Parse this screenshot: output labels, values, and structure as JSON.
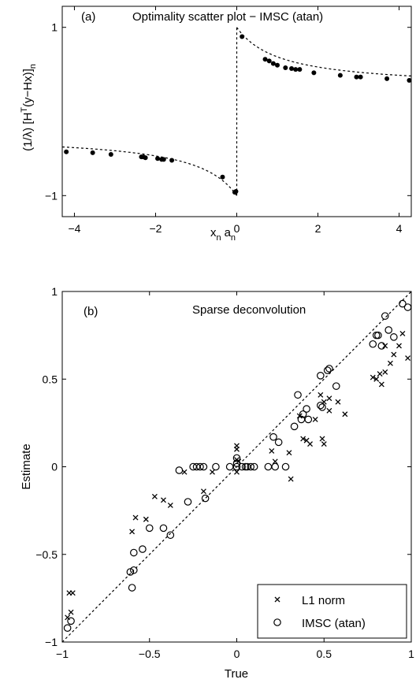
{
  "chart_data": [
    {
      "type": "scatter",
      "panel_letter": "(a)",
      "title": "Optimality scatter plot − IMSC (atan)",
      "xlabel": "x",
      "xlabel_sub": "n",
      "xlabel_b": "a",
      "xlabel_b_sub": "n",
      "ylabel": "(1/λ) [H",
      "ylabel_sup": "T",
      "ylabel_tail": "(y−Hx)]",
      "ylabel_sub": "n",
      "xlim": [
        -4.3,
        4.3
      ],
      "ylim": [
        -1.25,
        1.25
      ],
      "xticks": [
        -4,
        -2,
        0,
        2,
        4
      ],
      "xtick_labels": [
        "−4",
        "−2",
        "0",
        "2",
        "4"
      ],
      "yticks": [
        -1,
        1
      ],
      "ytick_labels": [
        "−1",
        "1"
      ],
      "curve": "dashed threshold function -2/(pi*(1+|x|)) * sign-complement, jumps from -1 to 1 at x=0",
      "points": [
        {
          "x": -4.2,
          "y": -0.48
        },
        {
          "x": -3.55,
          "y": -0.49
        },
        {
          "x": -3.1,
          "y": -0.51
        },
        {
          "x": -2.35,
          "y": -0.54
        },
        {
          "x": -2.3,
          "y": -0.54
        },
        {
          "x": -2.25,
          "y": -0.55
        },
        {
          "x": -1.95,
          "y": -0.56
        },
        {
          "x": -1.85,
          "y": -0.57
        },
        {
          "x": -1.8,
          "y": -0.57
        },
        {
          "x": -1.6,
          "y": -0.58
        },
        {
          "x": -0.35,
          "y": -0.78
        },
        {
          "x": -0.05,
          "y": -0.96
        },
        {
          "x": -0.02,
          "y": -0.95
        },
        {
          "x": 0.13,
          "y": 0.89
        },
        {
          "x": 0.7,
          "y": 0.62
        },
        {
          "x": 0.8,
          "y": 0.6
        },
        {
          "x": 0.9,
          "y": 0.57
        },
        {
          "x": 1.0,
          "y": 0.55
        },
        {
          "x": 1.2,
          "y": 0.52
        },
        {
          "x": 1.35,
          "y": 0.51
        },
        {
          "x": 1.45,
          "y": 0.5
        },
        {
          "x": 1.55,
          "y": 0.5
        },
        {
          "x": 1.9,
          "y": 0.46
        },
        {
          "x": 2.55,
          "y": 0.43
        },
        {
          "x": 2.95,
          "y": 0.41
        },
        {
          "x": 3.05,
          "y": 0.41
        },
        {
          "x": 3.7,
          "y": 0.39
        },
        {
          "x": 4.25,
          "y": 0.37
        }
      ]
    },
    {
      "type": "scatter",
      "panel_letter": "(b)",
      "title": "Sparse deconvolution",
      "xlabel": "True",
      "ylabel": "Estimate",
      "xlim": [
        -1,
        1
      ],
      "ylim": [
        -1,
        1
      ],
      "xticks": [
        -1,
        -0.5,
        0,
        0.5,
        1
      ],
      "xtick_labels": [
        "−1",
        "−0.5",
        "0",
        "0.5",
        "1"
      ],
      "yticks": [
        -1,
        -0.5,
        0,
        0.5,
        1
      ],
      "ytick_labels": [
        "−1",
        "−0.5",
        "0",
        "0.5",
        "1"
      ],
      "reference_line": "y = x (dashed)",
      "legend_location": "bottom-right",
      "series": [
        {
          "name": "L1 norm",
          "marker": "x",
          "points": [
            {
              "x": -0.97,
              "y": -0.86
            },
            {
              "x": -0.96,
              "y": -0.72
            },
            {
              "x": -0.94,
              "y": -0.72
            },
            {
              "x": -0.95,
              "y": -0.83
            },
            {
              "x": -0.6,
              "y": -0.37
            },
            {
              "x": -0.58,
              "y": -0.29
            },
            {
              "x": -0.52,
              "y": -0.3
            },
            {
              "x": -0.47,
              "y": -0.17
            },
            {
              "x": -0.42,
              "y": -0.19
            },
            {
              "x": -0.38,
              "y": -0.22
            },
            {
              "x": -0.19,
              "y": -0.14
            },
            {
              "x": -0.14,
              "y": -0.03
            },
            {
              "x": -0.3,
              "y": -0.03
            },
            {
              "x": 0.0,
              "y": 0.12
            },
            {
              "x": 0.0,
              "y": 0.1
            },
            {
              "x": 0.0,
              "y": 0.04
            },
            {
              "x": 0.01,
              "y": 0.03
            },
            {
              "x": 0.0,
              "y": -0.03
            },
            {
              "x": 0.2,
              "y": 0.09
            },
            {
              "x": 0.22,
              "y": 0.03
            },
            {
              "x": 0.3,
              "y": 0.08
            },
            {
              "x": 0.31,
              "y": -0.07
            },
            {
              "x": 0.36,
              "y": 0.29
            },
            {
              "x": 0.38,
              "y": 0.16
            },
            {
              "x": 0.4,
              "y": 0.15
            },
            {
              "x": 0.42,
              "y": 0.13
            },
            {
              "x": 0.45,
              "y": 0.27
            },
            {
              "x": 0.48,
              "y": 0.41
            },
            {
              "x": 0.49,
              "y": 0.16
            },
            {
              "x": 0.5,
              "y": 0.13
            },
            {
              "x": 0.5,
              "y": 0.37
            },
            {
              "x": 0.53,
              "y": 0.39
            },
            {
              "x": 0.53,
              "y": 0.32
            },
            {
              "x": 0.58,
              "y": 0.37
            },
            {
              "x": 0.62,
              "y": 0.3
            },
            {
              "x": 0.78,
              "y": 0.51
            },
            {
              "x": 0.8,
              "y": 0.5
            },
            {
              "x": 0.82,
              "y": 0.53
            },
            {
              "x": 0.83,
              "y": 0.47
            },
            {
              "x": 0.85,
              "y": 0.54
            },
            {
              "x": 0.88,
              "y": 0.59
            },
            {
              "x": 0.9,
              "y": 0.64
            },
            {
              "x": 0.93,
              "y": 0.69
            },
            {
              "x": 0.95,
              "y": 0.76
            },
            {
              "x": 0.98,
              "y": 0.62
            },
            {
              "x": 0.85,
              "y": 0.69
            }
          ]
        },
        {
          "name": "IMSC (atan)",
          "marker": "o",
          "points": [
            {
              "x": -0.97,
              "y": -0.92
            },
            {
              "x": -0.95,
              "y": -0.88
            },
            {
              "x": -0.61,
              "y": -0.6
            },
            {
              "x": -0.6,
              "y": -0.69
            },
            {
              "x": -0.59,
              "y": -0.59
            },
            {
              "x": -0.59,
              "y": -0.49
            },
            {
              "x": -0.54,
              "y": -0.47
            },
            {
              "x": -0.5,
              "y": -0.35
            },
            {
              "x": -0.42,
              "y": -0.35
            },
            {
              "x": -0.38,
              "y": -0.39
            },
            {
              "x": -0.33,
              "y": -0.02
            },
            {
              "x": -0.28,
              "y": -0.2
            },
            {
              "x": -0.18,
              "y": -0.18
            },
            {
              "x": -0.25,
              "y": 0.0
            },
            {
              "x": -0.23,
              "y": 0.0
            },
            {
              "x": -0.21,
              "y": 0.0
            },
            {
              "x": -0.19,
              "y": 0.0
            },
            {
              "x": -0.12,
              "y": 0.0
            },
            {
              "x": -0.04,
              "y": 0.0
            },
            {
              "x": 0.0,
              "y": 0.0
            },
            {
              "x": 0.0,
              "y": 0.05
            },
            {
              "x": 0.0,
              "y": 0.02
            },
            {
              "x": 0.03,
              "y": 0.0
            },
            {
              "x": 0.05,
              "y": 0.0
            },
            {
              "x": 0.06,
              "y": 0.0
            },
            {
              "x": 0.08,
              "y": 0.0
            },
            {
              "x": 0.1,
              "y": 0.0
            },
            {
              "x": 0.18,
              "y": 0.0
            },
            {
              "x": 0.22,
              "y": 0.0
            },
            {
              "x": 0.28,
              "y": 0.0
            },
            {
              "x": 0.21,
              "y": 0.17
            },
            {
              "x": 0.24,
              "y": 0.14
            },
            {
              "x": 0.33,
              "y": 0.23
            },
            {
              "x": 0.35,
              "y": 0.41
            },
            {
              "x": 0.37,
              "y": 0.27
            },
            {
              "x": 0.38,
              "y": 0.3
            },
            {
              "x": 0.4,
              "y": 0.33
            },
            {
              "x": 0.41,
              "y": 0.27
            },
            {
              "x": 0.48,
              "y": 0.35
            },
            {
              "x": 0.48,
              "y": 0.52
            },
            {
              "x": 0.49,
              "y": 0.34
            },
            {
              "x": 0.52,
              "y": 0.55
            },
            {
              "x": 0.53,
              "y": 0.56
            },
            {
              "x": 0.57,
              "y": 0.46
            },
            {
              "x": 0.78,
              "y": 0.7
            },
            {
              "x": 0.8,
              "y": 0.75
            },
            {
              "x": 0.81,
              "y": 0.75
            },
            {
              "x": 0.83,
              "y": 0.69
            },
            {
              "x": 0.85,
              "y": 0.86
            },
            {
              "x": 0.87,
              "y": 0.78
            },
            {
              "x": 0.9,
              "y": 0.74
            },
            {
              "x": 0.95,
              "y": 0.93
            },
            {
              "x": 0.98,
              "y": 0.91
            }
          ]
        }
      ]
    }
  ]
}
